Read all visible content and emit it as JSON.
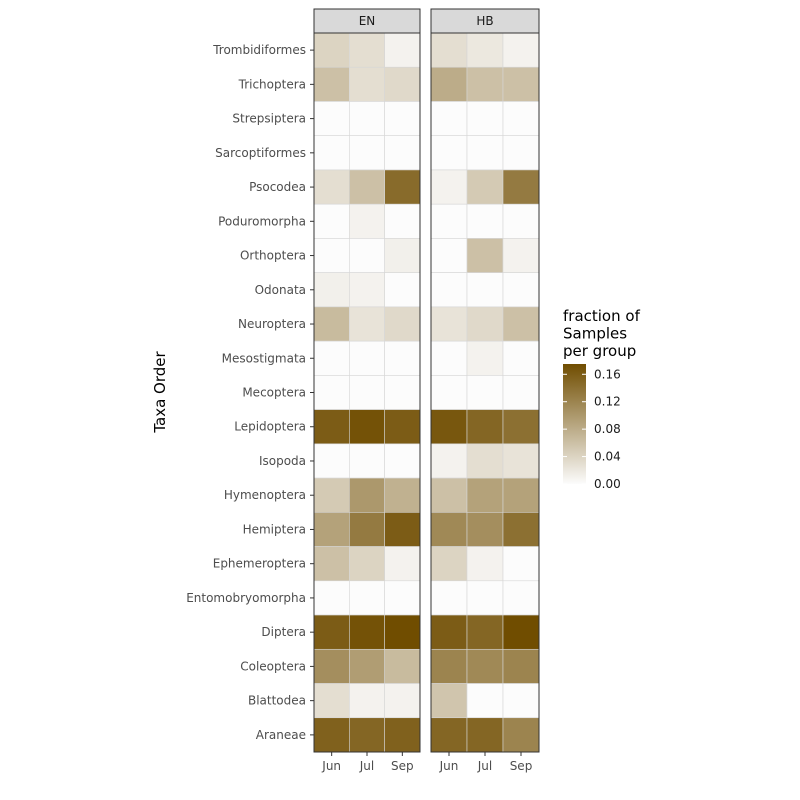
{
  "chart_data": {
    "type": "heatmap",
    "facets": [
      "EN",
      "HB"
    ],
    "x": [
      "Jun",
      "Jul",
      "Sep"
    ],
    "y": [
      "Trombidiformes",
      "Trichoptera",
      "Strepsiptera",
      "Sarcoptiformes",
      "Psocodea",
      "Poduromorpha",
      "Orthoptera",
      "Odonata",
      "Neuroptera",
      "Mesostigmata",
      "Mecoptera",
      "Lepidoptera",
      "Isopoda",
      "Hymenoptera",
      "Hemiptera",
      "Ephemeroptera",
      "Entomobryomorpha",
      "Diptera",
      "Coleoptera",
      "Blattodea",
      "Araneae"
    ],
    "ylabel": "Taxa Order",
    "xlabel": "",
    "values": {
      "EN": [
        [
          0.04,
          0.03,
          0.01
        ],
        [
          0.06,
          0.03,
          0.035
        ],
        [
          0.0,
          0.0,
          0.0
        ],
        [
          0.0,
          0.0,
          0.0
        ],
        [
          0.03,
          0.06,
          0.145
        ],
        [
          0.0,
          0.01,
          0.0
        ],
        [
          0.0,
          0.0,
          0.012
        ],
        [
          0.012,
          0.01,
          0.0
        ],
        [
          0.065,
          0.025,
          0.035
        ],
        [
          0.0,
          0.0,
          0.0
        ],
        [
          0.0,
          0.0,
          0.0
        ],
        [
          0.16,
          0.17,
          0.16
        ],
        [
          0.0,
          0.0,
          0.0
        ],
        [
          0.05,
          0.1,
          0.075
        ],
        [
          0.09,
          0.13,
          0.16
        ],
        [
          0.06,
          0.04,
          0.01
        ],
        [
          0.0,
          0.0,
          0.0
        ],
        [
          0.16,
          0.17,
          0.175
        ],
        [
          0.11,
          0.095,
          0.065
        ],
        [
          0.03,
          0.01,
          0.01
        ],
        [
          0.155,
          0.15,
          0.155
        ]
      ],
      "HB": [
        [
          0.03,
          0.02,
          0.01
        ],
        [
          0.08,
          0.06,
          0.06
        ],
        [
          0.0,
          0.0,
          0.0
        ],
        [
          0.0,
          0.0,
          0.0
        ],
        [
          0.01,
          0.05,
          0.13
        ],
        [
          0.0,
          0.0,
          0.0
        ],
        [
          0.0,
          0.06,
          0.01
        ],
        [
          0.0,
          0.0,
          0.0
        ],
        [
          0.025,
          0.035,
          0.06
        ],
        [
          0.0,
          0.01,
          0.0
        ],
        [
          0.0,
          0.0,
          0.0
        ],
        [
          0.165,
          0.15,
          0.14
        ],
        [
          0.01,
          0.03,
          0.025
        ],
        [
          0.06,
          0.09,
          0.09
        ],
        [
          0.115,
          0.11,
          0.14
        ],
        [
          0.04,
          0.01,
          0.0
        ],
        [
          0.0,
          0.0,
          0.0
        ],
        [
          0.16,
          0.15,
          0.175
        ],
        [
          0.12,
          0.115,
          0.12
        ],
        [
          0.055,
          0.0,
          0.0
        ],
        [
          0.15,
          0.15,
          0.12
        ]
      ]
    },
    "color_scale": {
      "low": "#fcfcfc",
      "high": "#704d00",
      "limits": [
        0,
        0.175
      ]
    },
    "legend": {
      "title_lines": [
        "fraction of",
        "Samples",
        "per group"
      ],
      "breaks": [
        "0.16",
        "0.12",
        "0.08",
        "0.04",
        "0.00"
      ],
      "break_values": [
        0.16,
        0.12,
        0.08,
        0.04,
        0.0
      ],
      "position": "right"
    }
  }
}
